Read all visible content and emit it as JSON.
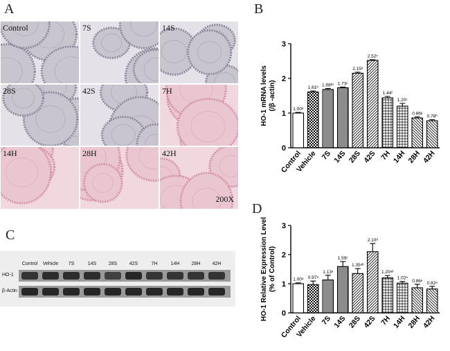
{
  "panel_letters": {
    "a": "A",
    "b": "B",
    "c": "C",
    "d": "D"
  },
  "histology": {
    "tiles": [
      {
        "label": "Control",
        "stain": "grey"
      },
      {
        "label": "7S",
        "stain": "grey"
      },
      {
        "label": "14S",
        "stain": "grey"
      },
      {
        "label": "28S",
        "stain": "grey"
      },
      {
        "label": "42S",
        "stain": "grey"
      },
      {
        "label": "7H",
        "stain": "pink"
      },
      {
        "label": "14H",
        "stain": "pink"
      },
      {
        "label": "28H",
        "stain": "pink"
      },
      {
        "label": "42H",
        "stain": "pink"
      }
    ],
    "magnification": "200X"
  },
  "blot": {
    "lanes": [
      "Control",
      "Vehicle",
      "7S",
      "14S",
      "28S",
      "42S",
      "7H",
      "14H",
      "28H",
      "42H"
    ],
    "rows": [
      {
        "label": "HO-1",
        "intensity": [
          0.8,
          0.85,
          0.85,
          0.85,
          0.7,
          0.9,
          0.8,
          0.8,
          0.8,
          0.8
        ]
      },
      {
        "label": "β-Actin",
        "intensity": [
          0.9,
          0.9,
          0.9,
          0.9,
          0.9,
          0.9,
          0.9,
          0.9,
          0.9,
          0.9
        ]
      }
    ]
  },
  "colors": {
    "tile_grey": "#c9c5cf",
    "tile_pink": "#e9c6d0",
    "bar_stroke": "#000000",
    "blot_band": "#1a1a1a"
  },
  "chart_data": [
    {
      "type": "bar",
      "panel": "B",
      "categories": [
        "Control",
        "Vehicle",
        "7S",
        "14S",
        "28S",
        "42S",
        "7H",
        "14H",
        "28H",
        "42H"
      ],
      "values": [
        1.0,
        1.61,
        1.68,
        1.73,
        2.15,
        2.52,
        1.44,
        1.2,
        0.86,
        0.78
      ],
      "errors": [
        0.02,
        0.03,
        0.03,
        0.02,
        0.03,
        0.02,
        0.04,
        0.08,
        0.03,
        0.03
      ],
      "annotations": [
        "1.00ᵃ",
        "1.61ᵇ",
        "1.68ᵇᶜ",
        "1.73ᶜ",
        "2.15ᵈ",
        "2.52ᵉ",
        "1.44ᶠ",
        "1.20ᶜ",
        "0.86ᵍ",
        "0.78ʰ"
      ],
      "patterns": [
        "blank",
        "checker",
        "vertical",
        "vertical",
        "diagonal",
        "diagonal",
        "grid",
        "grid",
        "backdiag",
        "backdiag"
      ],
      "ylabel": "HO-1 mRNA levels\n(/β -actin)",
      "ylim": [
        0,
        3
      ],
      "yticks": [
        0,
        1,
        2,
        3
      ]
    },
    {
      "type": "bar",
      "panel": "D",
      "categories": [
        "Control",
        "Vehicle",
        "7S",
        "14S",
        "28S",
        "42S",
        "7H",
        "14H",
        "28H",
        "42H"
      ],
      "values": [
        1.0,
        0.97,
        1.13,
        1.59,
        1.35,
        2.1,
        1.2,
        1.02,
        0.86,
        0.82
      ],
      "errors": [
        0.03,
        0.12,
        0.16,
        0.17,
        0.17,
        0.28,
        0.08,
        0.06,
        0.12,
        0.09
      ],
      "annotations": [
        "1.00ᵃ",
        "0.97ᵃ",
        "1.13ᵃ",
        "1.59ᶜ",
        "1.35ᵃᵇ",
        "2.10ᵈ",
        "1.20ᵃᵇ",
        "1.02ᵃ",
        "0.86ᵃ",
        "0.82ᵃ"
      ],
      "patterns": [
        "blank",
        "checker",
        "vertical",
        "vertical",
        "diagonal",
        "diagonal",
        "grid",
        "grid",
        "backdiag",
        "backdiag"
      ],
      "ylabel": "HO-1 Relative Expression Level\n(% of Control)",
      "ylim": [
        0,
        3
      ],
      "yticks": [
        0,
        1,
        2,
        3
      ]
    }
  ]
}
